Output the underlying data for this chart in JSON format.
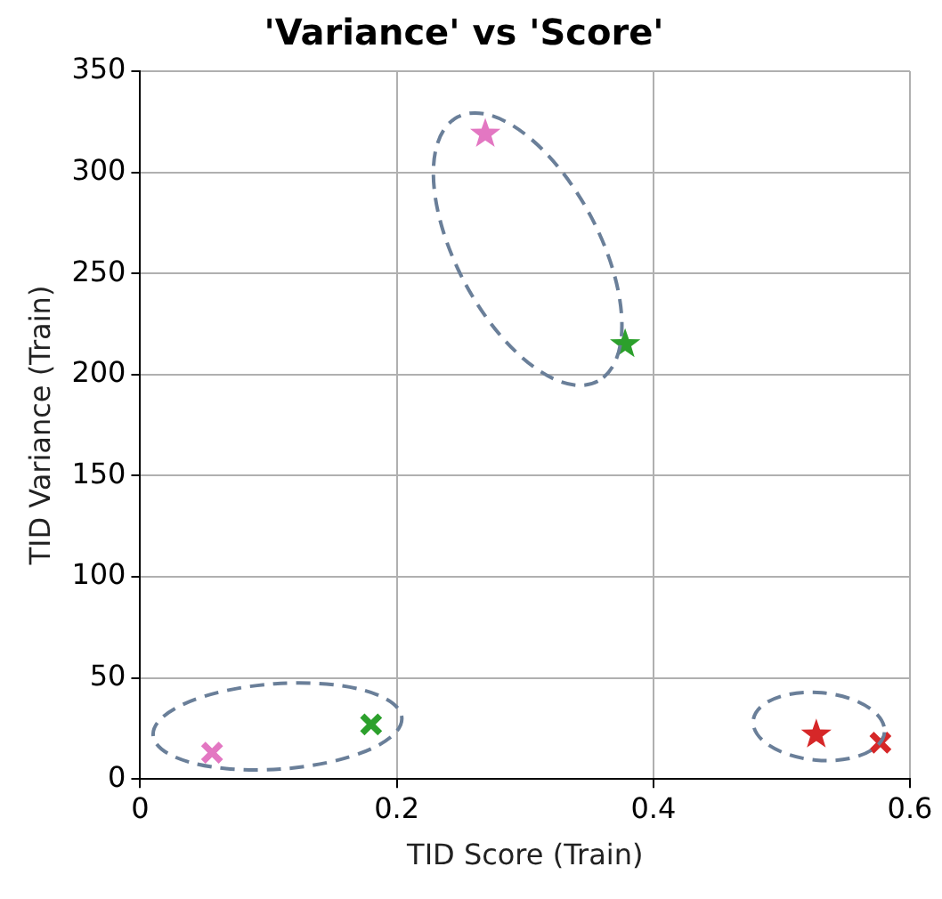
{
  "chart_data": {
    "type": "scatter",
    "title": "'Variance' vs 'Score'",
    "xlabel": "TID Score (Train)",
    "ylabel": "TID Variance (Train)",
    "xlim": [
      0,
      0.6
    ],
    "xticks": [
      0,
      0.2,
      0.4,
      0.6
    ],
    "ylim": [
      0,
      350
    ],
    "yticks": [
      0,
      50,
      100,
      150,
      200,
      250,
      300,
      350
    ],
    "grid": true,
    "legend": false,
    "series": [
      {
        "color": "#e377c2",
        "marker": "cross",
        "x": [
          0.056
        ],
        "values": [
          13
        ]
      },
      {
        "color": "#2ca02c",
        "marker": "cross",
        "x": [
          0.18
        ],
        "values": [
          27
        ]
      },
      {
        "color": "#e377c2",
        "marker": "star",
        "x": [
          0.269
        ],
        "values": [
          319
        ]
      },
      {
        "color": "#2ca02c",
        "marker": "star",
        "x": [
          0.378
        ],
        "values": [
          215
        ]
      },
      {
        "color": "#d62728",
        "marker": "star",
        "x": [
          0.527
        ],
        "values": [
          22
        ]
      },
      {
        "color": "#d62728",
        "marker": "cross",
        "x": [
          0.577
        ],
        "values": [
          18
        ]
      }
    ]
  }
}
